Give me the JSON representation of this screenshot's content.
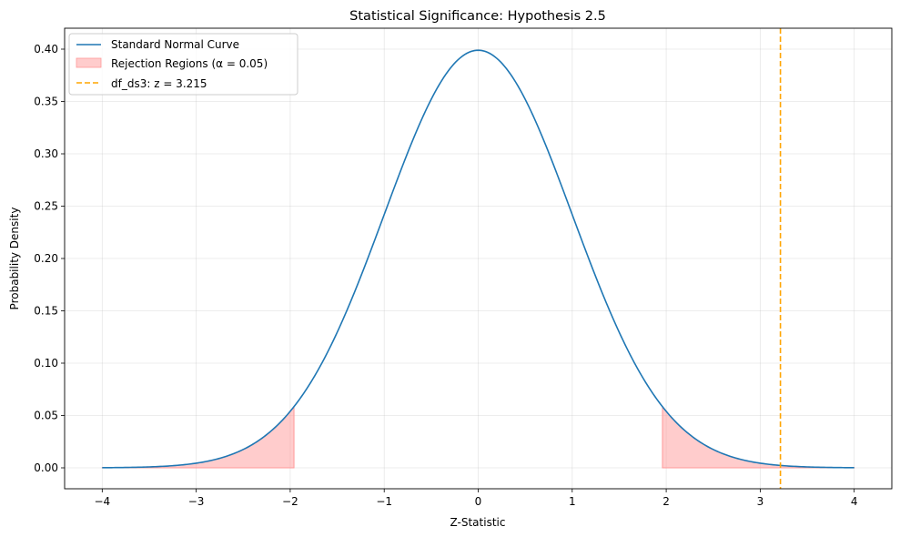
{
  "chart_data": {
    "type": "line",
    "title": "Statistical Significance: Hypothesis 2.5",
    "xlabel": "Z-Statistic",
    "ylabel": "Probability Density",
    "xlim": [
      -4.4,
      4.4
    ],
    "ylim": [
      -0.02,
      0.42
    ],
    "xticks": [
      -4,
      -3,
      -2,
      -1,
      0,
      1,
      2,
      3,
      4
    ],
    "xtick_labels": [
      "−4",
      "−3",
      "−2",
      "−1",
      "0",
      "1",
      "2",
      "3",
      "4"
    ],
    "yticks": [
      0.0,
      0.05,
      0.1,
      0.15,
      0.2,
      0.25,
      0.3,
      0.35,
      0.4
    ],
    "ytick_labels": [
      "0.00",
      "0.05",
      "0.10",
      "0.15",
      "0.20",
      "0.25",
      "0.30",
      "0.35",
      "0.40"
    ],
    "grid": true,
    "legend_position": "top-left",
    "curve": {
      "name": "Standard Normal Curve",
      "x_range": [
        -4,
        4
      ],
      "peak": 0.399,
      "color": "#1f77b4"
    },
    "rejection_regions": {
      "name": "Rejection Regions (α = 0.05)",
      "critical_value": 1.96,
      "color": "#ff9999"
    },
    "test_statistic": {
      "name": "df_ds3: z = 3.215",
      "z": 3.215,
      "color": "#ffa500"
    }
  }
}
